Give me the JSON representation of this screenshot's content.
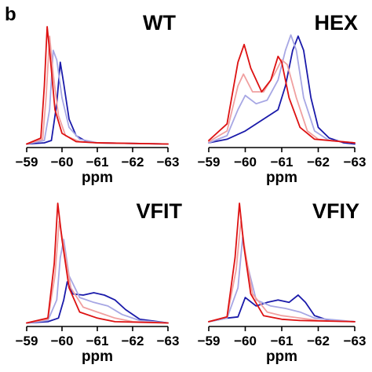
{
  "figure": {
    "panel_letter": "b"
  },
  "series_colors": [
    "#1a1aaa",
    "#a7a7e4",
    "#f0a0a0",
    "#dd1111"
  ],
  "chart_data": [
    {
      "type": "line",
      "title": "WT",
      "xlabel": "ppm",
      "ylabel": "",
      "xlim": [
        -59,
        -63
      ],
      "x_reversed": true,
      "x_ticks": [
        -59,
        -60,
        -61,
        -62,
        -63
      ],
      "x_tick_labels": [
        "−59",
        "−60",
        "−61",
        "−62",
        "−63"
      ],
      "y_axis_visible": false,
      "ylim": [
        0,
        1
      ],
      "series": [
        {
          "color": "#1a1aaa",
          "points": [
            [
              -59,
              0.01
            ],
            [
              -59.5,
              0.02
            ],
            [
              -59.7,
              0.04
            ],
            [
              -59.85,
              0.35
            ],
            [
              -59.95,
              0.7
            ],
            [
              -60.05,
              0.52
            ],
            [
              -60.2,
              0.22
            ],
            [
              -60.4,
              0.08
            ],
            [
              -60.7,
              0.03
            ],
            [
              -61,
              0.02
            ],
            [
              -63,
              0.01
            ]
          ]
        },
        {
          "color": "#a7a7e4",
          "points": [
            [
              -59,
              0.01
            ],
            [
              -59.5,
              0.04
            ],
            [
              -59.65,
              0.3
            ],
            [
              -59.75,
              0.8
            ],
            [
              -59.85,
              0.72
            ],
            [
              -60.0,
              0.4
            ],
            [
              -60.2,
              0.15
            ],
            [
              -60.5,
              0.05
            ],
            [
              -61,
              0.02
            ],
            [
              -63,
              0.01
            ]
          ]
        },
        {
          "color": "#f0a0a0",
          "points": [
            [
              -59,
              0.01
            ],
            [
              -59.45,
              0.05
            ],
            [
              -59.55,
              0.4
            ],
            [
              -59.65,
              0.92
            ],
            [
              -59.75,
              0.6
            ],
            [
              -59.9,
              0.25
            ],
            [
              -60.1,
              0.08
            ],
            [
              -60.5,
              0.03
            ],
            [
              -61,
              0.02
            ],
            [
              -63,
              0.01
            ]
          ]
        },
        {
          "color": "#dd1111",
          "points": [
            [
              -59,
              0.01
            ],
            [
              -59.4,
              0.06
            ],
            [
              -59.5,
              0.5
            ],
            [
              -59.58,
              1.0
            ],
            [
              -59.68,
              0.7
            ],
            [
              -59.8,
              0.3
            ],
            [
              -60.0,
              0.1
            ],
            [
              -60.4,
              0.03
            ],
            [
              -61,
              0.02
            ],
            [
              -63,
              0.01
            ]
          ]
        }
      ]
    },
    {
      "type": "line",
      "title": "HEX",
      "xlabel": "ppm",
      "ylabel": "",
      "xlim": [
        -59,
        -63
      ],
      "x_reversed": true,
      "x_ticks": [
        -59,
        -60,
        -61,
        -62,
        -63
      ],
      "x_tick_labels": [
        "−59",
        "−60",
        "−61",
        "−62",
        "−63"
      ],
      "y_axis_visible": false,
      "ylim": [
        0,
        1
      ],
      "series": [
        {
          "color": "#1a1aaa",
          "points": [
            [
              -59,
              0.02
            ],
            [
              -59.5,
              0.05
            ],
            [
              -60,
              0.12
            ],
            [
              -60.5,
              0.22
            ],
            [
              -60.9,
              0.3
            ],
            [
              -61.1,
              0.5
            ],
            [
              -61.3,
              0.8
            ],
            [
              -61.45,
              0.92
            ],
            [
              -61.6,
              0.8
            ],
            [
              -61.8,
              0.4
            ],
            [
              -62,
              0.15
            ],
            [
              -62.3,
              0.06
            ],
            [
              -62.7,
              0.02
            ],
            [
              -63,
              0.01
            ]
          ]
        },
        {
          "color": "#a7a7e4",
          "points": [
            [
              -59,
              0.02
            ],
            [
              -59.5,
              0.08
            ],
            [
              -59.8,
              0.3
            ],
            [
              -60,
              0.42
            ],
            [
              -60.3,
              0.35
            ],
            [
              -60.6,
              0.38
            ],
            [
              -60.9,
              0.55
            ],
            [
              -61.1,
              0.8
            ],
            [
              -61.25,
              0.93
            ],
            [
              -61.4,
              0.8
            ],
            [
              -61.6,
              0.4
            ],
            [
              -61.9,
              0.12
            ],
            [
              -62.3,
              0.04
            ],
            [
              -63,
              0.02
            ]
          ]
        },
        {
          "color": "#f0a0a0",
          "points": [
            [
              -59,
              0.03
            ],
            [
              -59.5,
              0.12
            ],
            [
              -59.8,
              0.5
            ],
            [
              -59.95,
              0.6
            ],
            [
              -60.2,
              0.45
            ],
            [
              -60.5,
              0.45
            ],
            [
              -60.8,
              0.6
            ],
            [
              -61.0,
              0.72
            ],
            [
              -61.15,
              0.68
            ],
            [
              -61.4,
              0.4
            ],
            [
              -61.7,
              0.12
            ],
            [
              -62,
              0.05
            ],
            [
              -63,
              0.02
            ]
          ]
        },
        {
          "color": "#dd1111",
          "points": [
            [
              -59,
              0.04
            ],
            [
              -59.5,
              0.18
            ],
            [
              -59.8,
              0.7
            ],
            [
              -59.97,
              0.85
            ],
            [
              -60.15,
              0.65
            ],
            [
              -60.45,
              0.45
            ],
            [
              -60.7,
              0.55
            ],
            [
              -60.9,
              0.75
            ],
            [
              -61.0,
              0.7
            ],
            [
              -61.2,
              0.4
            ],
            [
              -61.5,
              0.15
            ],
            [
              -61.9,
              0.05
            ],
            [
              -63,
              0.02
            ]
          ]
        }
      ]
    },
    {
      "type": "line",
      "title": "VFIT",
      "xlabel": "ppm",
      "ylabel": "",
      "xlim": [
        -59,
        -63
      ],
      "x_reversed": true,
      "x_ticks": [
        -59,
        -60,
        -61,
        -62,
        -63
      ],
      "x_tick_labels": [
        "−59",
        "−60",
        "−61",
        "−62",
        "−63"
      ],
      "y_axis_visible": false,
      "ylim": [
        0,
        1
      ],
      "series": [
        {
          "color": "#1a1aaa",
          "points": [
            [
              -59,
              0.01
            ],
            [
              -59.6,
              0.02
            ],
            [
              -59.9,
              0.05
            ],
            [
              -60.05,
              0.2
            ],
            [
              -60.15,
              0.35
            ],
            [
              -60.3,
              0.25
            ],
            [
              -60.6,
              0.24
            ],
            [
              -60.9,
              0.26
            ],
            [
              -61.2,
              0.24
            ],
            [
              -61.5,
              0.2
            ],
            [
              -61.8,
              0.12
            ],
            [
              -62.2,
              0.04
            ],
            [
              -63,
              0.01
            ]
          ]
        },
        {
          "color": "#a7a7e4",
          "points": [
            [
              -59,
              0.01
            ],
            [
              -59.6,
              0.03
            ],
            [
              -59.85,
              0.2
            ],
            [
              -59.95,
              0.55
            ],
            [
              -60.05,
              0.7
            ],
            [
              -60.2,
              0.4
            ],
            [
              -60.5,
              0.22
            ],
            [
              -60.9,
              0.18
            ],
            [
              -61.3,
              0.15
            ],
            [
              -61.7,
              0.08
            ],
            [
              -62.2,
              0.03
            ],
            [
              -63,
              0.01
            ]
          ]
        },
        {
          "color": "#f0a0a0",
          "points": [
            [
              -59,
              0.01
            ],
            [
              -59.6,
              0.04
            ],
            [
              -59.8,
              0.4
            ],
            [
              -59.92,
              0.85
            ],
            [
              -60.05,
              0.65
            ],
            [
              -60.25,
              0.3
            ],
            [
              -60.6,
              0.14
            ],
            [
              -61.0,
              0.1
            ],
            [
              -61.5,
              0.05
            ],
            [
              -62,
              0.02
            ],
            [
              -63,
              0.01
            ]
          ]
        },
        {
          "color": "#dd1111",
          "points": [
            [
              -59,
              0.01
            ],
            [
              -59.6,
              0.05
            ],
            [
              -59.78,
              0.5
            ],
            [
              -59.88,
              1.0
            ],
            [
              -60.0,
              0.7
            ],
            [
              -60.2,
              0.3
            ],
            [
              -60.5,
              0.1
            ],
            [
              -61,
              0.05
            ],
            [
              -61.5,
              0.02
            ],
            [
              -63,
              0.01
            ]
          ]
        }
      ]
    },
    {
      "type": "line",
      "title": "VFIY",
      "xlabel": "ppm",
      "ylabel": "",
      "xlim": [
        -59,
        -63
      ],
      "x_reversed": true,
      "x_ticks": [
        -59,
        -60,
        -61,
        -62,
        -63
      ],
      "x_tick_labels": [
        "−59",
        "−60",
        "−61",
        "−62",
        "−63"
      ],
      "y_axis_visible": false,
      "ylim": [
        0,
        1
      ],
      "series": [
        {
          "color": "#1a1aaa",
          "points": [
            [
              -59,
              0.02
            ],
            [
              -59.5,
              0.05
            ],
            [
              -59.8,
              0.06
            ],
            [
              -60.0,
              0.22
            ],
            [
              -60.3,
              0.15
            ],
            [
              -60.6,
              0.18
            ],
            [
              -60.9,
              0.2
            ],
            [
              -61.2,
              0.18
            ],
            [
              -61.45,
              0.24
            ],
            [
              -61.65,
              0.18
            ],
            [
              -61.9,
              0.07
            ],
            [
              -62.3,
              0.03
            ],
            [
              -63,
              0.02
            ]
          ]
        },
        {
          "color": "#a7a7e4",
          "points": [
            [
              -59,
              0.02
            ],
            [
              -59.5,
              0.05
            ],
            [
              -59.8,
              0.3
            ],
            [
              -59.93,
              0.72
            ],
            [
              -60.05,
              0.5
            ],
            [
              -60.3,
              0.2
            ],
            [
              -60.7,
              0.15
            ],
            [
              -61.1,
              0.13
            ],
            [
              -61.5,
              0.1
            ],
            [
              -61.9,
              0.05
            ],
            [
              -63,
              0.02
            ]
          ]
        },
        {
          "color": "#f0a0a0",
          "points": [
            [
              -59,
              0.02
            ],
            [
              -59.5,
              0.06
            ],
            [
              -59.75,
              0.45
            ],
            [
              -59.88,
              0.85
            ],
            [
              -60.0,
              0.6
            ],
            [
              -60.2,
              0.25
            ],
            [
              -60.6,
              0.1
            ],
            [
              -61,
              0.07
            ],
            [
              -61.5,
              0.05
            ],
            [
              -62,
              0.03
            ],
            [
              -63,
              0.02
            ]
          ]
        },
        {
          "color": "#dd1111",
          "points": [
            [
              -59,
              0.02
            ],
            [
              -59.5,
              0.06
            ],
            [
              -59.72,
              0.55
            ],
            [
              -59.84,
              1.0
            ],
            [
              -59.96,
              0.65
            ],
            [
              -60.15,
              0.25
            ],
            [
              -60.5,
              0.07
            ],
            [
              -61,
              0.04
            ],
            [
              -61.5,
              0.03
            ],
            [
              -63,
              0.02
            ]
          ]
        }
      ]
    }
  ]
}
